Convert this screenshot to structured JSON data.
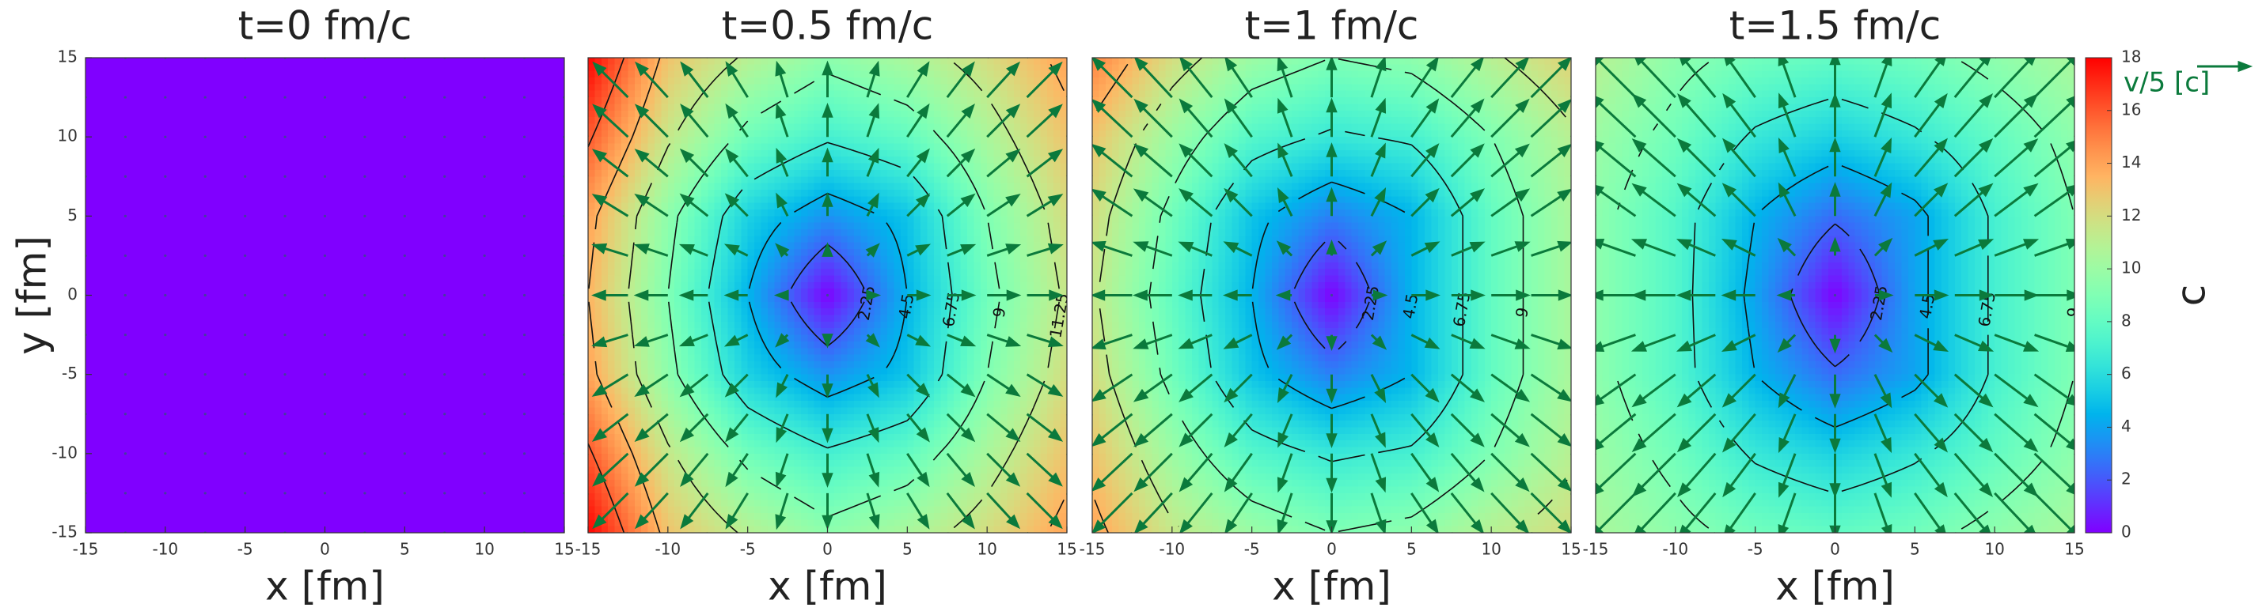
{
  "chart_data": [
    {
      "type": "heatmap",
      "title": "t=0 fm/c",
      "xlabel": "x [fm]",
      "ylabel": "y [fm]",
      "colormap": "rainbow",
      "quiver_color": "#0b7a3c",
      "xlim": [
        -15,
        15
      ],
      "ylim": [
        -15,
        15
      ],
      "xticks": [
        -15,
        -10,
        -5,
        0,
        5,
        10,
        15
      ],
      "yticks": [
        -15,
        -10,
        -5,
        0,
        5,
        10,
        15
      ],
      "x": [
        -15,
        -10,
        -5,
        0,
        5,
        10,
        15
      ],
      "y": [
        15,
        10,
        5,
        0,
        -5,
        -10,
        -15
      ],
      "z": [
        [
          0,
          0,
          0,
          0,
          0,
          0,
          0
        ],
        [
          0,
          0,
          0,
          0,
          0,
          0,
          0
        ],
        [
          0,
          0,
          0,
          0,
          0,
          0,
          0
        ],
        [
          0,
          0,
          0,
          0,
          0,
          0,
          0
        ],
        [
          0,
          0,
          0,
          0,
          0,
          0,
          0
        ],
        [
          0,
          0,
          0,
          0,
          0,
          0,
          0
        ],
        [
          0,
          0,
          0,
          0,
          0,
          0,
          0
        ]
      ],
      "u": [
        [
          0,
          0,
          0,
          0,
          0,
          0,
          0
        ],
        [
          0,
          0,
          0,
          0,
          0,
          0,
          0
        ],
        [
          0,
          0,
          0,
          0,
          0,
          0,
          0
        ],
        [
          0,
          0,
          0,
          0,
          0,
          0,
          0
        ],
        [
          0,
          0,
          0,
          0,
          0,
          0,
          0
        ],
        [
          0,
          0,
          0,
          0,
          0,
          0,
          0
        ],
        [
          0,
          0,
          0,
          0,
          0,
          0,
          0
        ]
      ],
      "v": [
        [
          0,
          0,
          0,
          0,
          0,
          0,
          0
        ],
        [
          0,
          0,
          0,
          0,
          0,
          0,
          0
        ],
        [
          0,
          0,
          0,
          0,
          0,
          0,
          0
        ],
        [
          0,
          0,
          0,
          0,
          0,
          0,
          0
        ],
        [
          0,
          0,
          0,
          0,
          0,
          0,
          0
        ],
        [
          0,
          0,
          0,
          0,
          0,
          0,
          0
        ],
        [
          0,
          0,
          0,
          0,
          0,
          0,
          0
        ]
      ]
    },
    {
      "type": "heatmap",
      "title": "t=0.5 fm/c",
      "xlabel": "x [fm]",
      "colormap": "rainbow",
      "quiver_color": "#0b7a3c",
      "xlim": [
        -15,
        15
      ],
      "ylim": [
        -15,
        15
      ],
      "xticks": [
        -15,
        -10,
        -5,
        0,
        5,
        10,
        15
      ],
      "x": [
        -15,
        -10,
        -5,
        0,
        5,
        10,
        15
      ],
      "y": [
        15,
        10,
        5,
        0,
        -5,
        -10,
        -15
      ],
      "z": [
        [
          18,
          13,
          11,
          9.5,
          10.5,
          12,
          14
        ],
        [
          16,
          11.5,
          8.5,
          7,
          8,
          10.5,
          13
        ],
        [
          14,
          9.5,
          5.5,
          3.5,
          5,
          9,
          12
        ],
        [
          13.5,
          9,
          4.5,
          0,
          4.5,
          8.5,
          11.5
        ],
        [
          14,
          9.5,
          5.5,
          3.5,
          5,
          9,
          12
        ],
        [
          16,
          11.5,
          8.5,
          7,
          8,
          10.5,
          13
        ],
        [
          18,
          13,
          11,
          9.5,
          10.5,
          12,
          14
        ]
      ],
      "u": [
        [
          -0.35,
          -0.3,
          -0.2,
          0,
          0.2,
          0.3,
          0.35
        ],
        [
          -0.35,
          -0.3,
          -0.2,
          0,
          0.2,
          0.3,
          0.35
        ],
        [
          -0.35,
          -0.3,
          -0.2,
          0,
          0.2,
          0.3,
          0.35
        ],
        [
          -0.35,
          -0.3,
          -0.2,
          0,
          0.2,
          0.3,
          0.35
        ],
        [
          -0.35,
          -0.3,
          -0.2,
          0,
          0.2,
          0.3,
          0.35
        ],
        [
          -0.35,
          -0.3,
          -0.2,
          0,
          0.2,
          0.3,
          0.35
        ],
        [
          -0.35,
          -0.3,
          -0.2,
          0,
          0.2,
          0.3,
          0.35
        ]
      ],
      "v": [
        [
          0.35,
          0.35,
          0.35,
          0.35,
          0.35,
          0.35,
          0.35
        ],
        [
          0.3,
          0.3,
          0.3,
          0.3,
          0.3,
          0.3,
          0.3
        ],
        [
          0.2,
          0.2,
          0.2,
          0.2,
          0.2,
          0.2,
          0.2
        ],
        [
          0,
          0,
          0,
          0,
          0,
          0,
          0
        ],
        [
          -0.2,
          -0.2,
          -0.2,
          -0.2,
          -0.2,
          -0.2,
          -0.2
        ],
        [
          -0.3,
          -0.3,
          -0.3,
          -0.3,
          -0.3,
          -0.3,
          -0.3
        ],
        [
          -0.35,
          -0.35,
          -0.35,
          -0.35,
          -0.35,
          -0.35,
          -0.35
        ]
      ],
      "contour_levels": [
        2.25,
        4.5,
        6.75,
        9,
        11.25,
        13.5,
        15.75
      ]
    },
    {
      "type": "heatmap",
      "title": "t=1 fm/c",
      "xlabel": "x [fm]",
      "colormap": "rainbow",
      "quiver_color": "#0b7a3c",
      "xlim": [
        -15,
        15
      ],
      "ylim": [
        -15,
        15
      ],
      "xticks": [
        -15,
        -10,
        -5,
        0,
        5,
        10,
        15
      ],
      "x": [
        -15,
        -10,
        -5,
        0,
        5,
        10,
        15
      ],
      "y": [
        15,
        10,
        5,
        0,
        -5,
        -10,
        -15
      ],
      "z": [
        [
          15,
          12,
          10,
          9,
          9.5,
          11,
          12.5
        ],
        [
          13,
          10,
          7.5,
          6.5,
          7,
          9,
          11
        ],
        [
          12,
          8.5,
          5,
          3,
          4.5,
          8,
          10.5
        ],
        [
          11.5,
          8,
          4.5,
          0,
          4.5,
          8,
          10.5
        ],
        [
          12,
          8.5,
          5,
          3,
          4.5,
          8,
          10.5
        ],
        [
          13,
          10,
          7.5,
          6.5,
          7,
          9,
          11
        ],
        [
          14,
          11.5,
          10,
          9,
          9.5,
          11,
          12
        ]
      ],
      "u": [
        [
          -0.4,
          -0.35,
          -0.25,
          0,
          0.25,
          0.35,
          0.4
        ],
        [
          -0.4,
          -0.35,
          -0.25,
          0,
          0.25,
          0.35,
          0.4
        ],
        [
          -0.4,
          -0.35,
          -0.25,
          0,
          0.25,
          0.35,
          0.4
        ],
        [
          -0.4,
          -0.35,
          -0.25,
          0,
          0.25,
          0.35,
          0.4
        ],
        [
          -0.4,
          -0.35,
          -0.25,
          0,
          0.25,
          0.35,
          0.4
        ],
        [
          -0.4,
          -0.35,
          -0.25,
          0,
          0.25,
          0.35,
          0.4
        ],
        [
          -0.4,
          -0.35,
          -0.25,
          0,
          0.25,
          0.35,
          0.4
        ]
      ],
      "v": [
        [
          0.4,
          0.4,
          0.4,
          0.4,
          0.4,
          0.4,
          0.4
        ],
        [
          0.35,
          0.35,
          0.35,
          0.35,
          0.35,
          0.35,
          0.35
        ],
        [
          0.25,
          0.25,
          0.25,
          0.25,
          0.25,
          0.25,
          0.25
        ],
        [
          0,
          0,
          0,
          0,
          0,
          0,
          0
        ],
        [
          -0.25,
          -0.25,
          -0.25,
          -0.25,
          -0.25,
          -0.25,
          -0.25
        ],
        [
          -0.35,
          -0.35,
          -0.35,
          -0.35,
          -0.35,
          -0.35,
          -0.35
        ],
        [
          -0.4,
          -0.4,
          -0.4,
          -0.4,
          -0.4,
          -0.4,
          -0.4
        ]
      ],
      "contour_levels": [
        2.25,
        4.5,
        6.75,
        9,
        11.25,
        13.5
      ]
    },
    {
      "type": "heatmap",
      "title": "t=1.5 fm/c",
      "xlabel": "x [fm]",
      "colormap": "rainbow",
      "quiver_color": "#0b7a3c",
      "xlim": [
        -15,
        15
      ],
      "ylim": [
        -15,
        15
      ],
      "xticks": [
        -15,
        -10,
        -5,
        0,
        5,
        10,
        15
      ],
      "x": [
        -15,
        -10,
        -5,
        0,
        5,
        10,
        15
      ],
      "y": [
        15,
        10,
        5,
        0,
        -5,
        -10,
        -15
      ],
      "z": [
        [
          11,
          9.5,
          8.5,
          8,
          8.5,
          9.5,
          10.5
        ],
        [
          10,
          8.5,
          6.5,
          5.5,
          6.5,
          8,
          9.5
        ],
        [
          9.5,
          7.5,
          4.5,
          2.5,
          4,
          7,
          9
        ],
        [
          9.5,
          7.5,
          4,
          0,
          4,
          7,
          9
        ],
        [
          9.5,
          7.5,
          4.5,
          2.5,
          4,
          7,
          9
        ],
        [
          10,
          8.5,
          6.5,
          5.5,
          6.5,
          8,
          9.5
        ],
        [
          10.5,
          9.5,
          8.5,
          8,
          8.5,
          9.5,
          10.5
        ]
      ],
      "u": [
        [
          -0.45,
          -0.4,
          -0.3,
          0,
          0.3,
          0.4,
          0.45
        ],
        [
          -0.45,
          -0.4,
          -0.3,
          0,
          0.3,
          0.4,
          0.45
        ],
        [
          -0.45,
          -0.4,
          -0.3,
          0,
          0.3,
          0.4,
          0.45
        ],
        [
          -0.45,
          -0.4,
          -0.3,
          0,
          0.3,
          0.4,
          0.45
        ],
        [
          -0.45,
          -0.4,
          -0.3,
          0,
          0.3,
          0.4,
          0.45
        ],
        [
          -0.45,
          -0.4,
          -0.3,
          0,
          0.3,
          0.4,
          0.45
        ],
        [
          -0.45,
          -0.4,
          -0.3,
          0,
          0.3,
          0.4,
          0.45
        ]
      ],
      "v": [
        [
          0.45,
          0.45,
          0.45,
          0.45,
          0.45,
          0.45,
          0.45
        ],
        [
          0.4,
          0.4,
          0.4,
          0.4,
          0.4,
          0.4,
          0.4
        ],
        [
          0.3,
          0.3,
          0.3,
          0.3,
          0.3,
          0.3,
          0.3
        ],
        [
          0,
          0,
          0,
          0,
          0,
          0,
          0
        ],
        [
          -0.3,
          -0.3,
          -0.3,
          -0.3,
          -0.3,
          -0.3,
          -0.3
        ],
        [
          -0.4,
          -0.4,
          -0.4,
          -0.4,
          -0.4,
          -0.4,
          -0.4
        ],
        [
          -0.45,
          -0.45,
          -0.45,
          -0.45,
          -0.45,
          -0.45,
          -0.45
        ]
      ],
      "contour_levels": [
        2.25,
        4.5,
        6.75,
        9
      ],
      "colorbar": {
        "label": "c",
        "lim": [
          0,
          18
        ],
        "ticks": [
          0,
          2,
          4,
          6,
          8,
          10,
          12,
          14,
          16,
          18
        ]
      },
      "quiver_key_label": "v/5 [c]"
    }
  ]
}
